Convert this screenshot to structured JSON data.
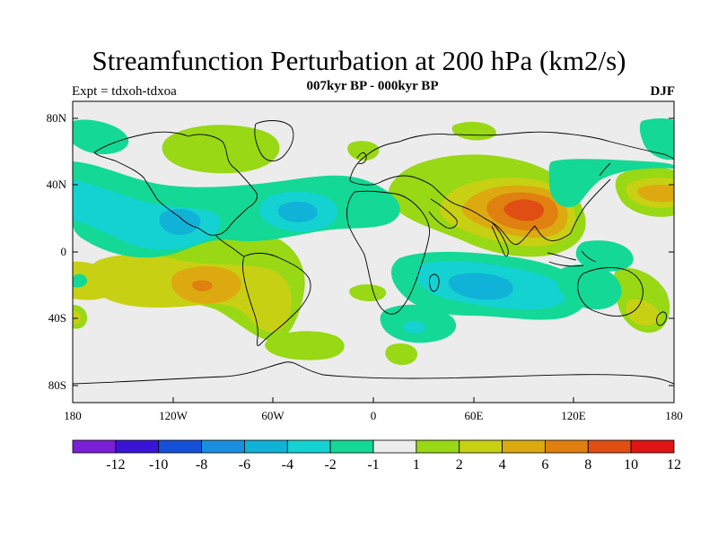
{
  "title": "Streamfunction Perturbation at 200 hPa (km2/s)",
  "subtitle": "007kyr BP - 000kyr BP",
  "experiment": "Expt = tdxoh-tdxoa",
  "season": "DJF",
  "lat_ticks": [
    "80N",
    "40N",
    "0",
    "40S",
    "80S"
  ],
  "lon_ticks": [
    "180",
    "120W",
    "60W",
    "0",
    "60E",
    "120E",
    "180"
  ],
  "colorbar": {
    "labels": [
      "-12",
      "-10",
      "-8",
      "-6",
      "-4",
      "-2",
      "-1",
      "1",
      "2",
      "4",
      "6",
      "8",
      "10",
      "12"
    ],
    "colors": [
      "#7b1fd6",
      "#3a14d6",
      "#1550d8",
      "#1a8fe0",
      "#11b2d8",
      "#14d2d2",
      "#14d896",
      "#ececec",
      "#98d814",
      "#c8d014",
      "#dcaa10",
      "#e08010",
      "#e04e14",
      "#e01414"
    ]
  },
  "map_colors": {
    "background": "#ececec",
    "neg1": "#14d896",
    "neg2": "#14d2d2",
    "neg3": "#11b2d8",
    "pos1": "#98d814",
    "pos2": "#c8d014",
    "pos3": "#dcaa10",
    "pos4": "#e08010",
    "pos5": "#e04e14",
    "coast": "#000000"
  }
}
